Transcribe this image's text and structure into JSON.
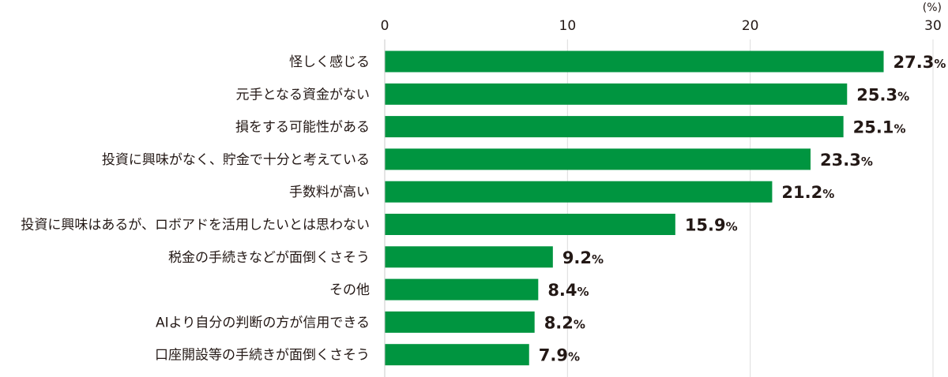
{
  "chart_data": {
    "type": "bar",
    "orientation": "horizontal",
    "unit": "(%)",
    "xlim": [
      0,
      30
    ],
    "xticks": [
      "0",
      "10",
      "20",
      "30"
    ],
    "grid": true,
    "bar_color": "#009540",
    "categories": [
      "怪しく感じる",
      "元手となる資金がない",
      "損をする可能性がある",
      "投資に興味がなく、貯金で十分と考えている",
      "手数料が高い",
      "投資に興味はあるが、ロボアドを活用したいとは思わない",
      "税金の手続きなどが面倒くさそう",
      "その他",
      "AIより自分の判断の方が信用できる",
      "口座開設等の手続きが面倒くさそう"
    ],
    "values": [
      27.3,
      25.3,
      25.1,
      23.3,
      21.2,
      15.9,
      9.2,
      8.4,
      8.2,
      7.9
    ],
    "value_labels": [
      "27.3",
      "25.3",
      "25.1",
      "23.3",
      "21.2",
      "15.9",
      "9.2",
      "8.4",
      "8.2",
      "7.9"
    ],
    "value_suffix": "%"
  }
}
